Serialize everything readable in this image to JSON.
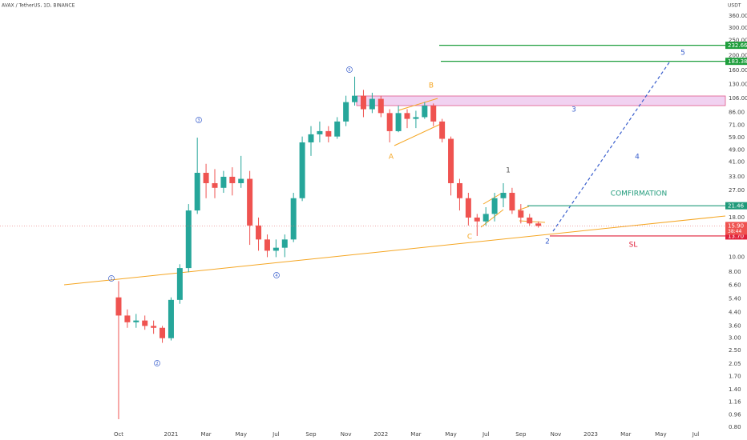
{
  "chart_data": {
    "type": "candlestick",
    "title": "AVAX / TetherUS, 1D, BINANCE",
    "currency": "USDT",
    "log_scale": true,
    "grid": false,
    "up_color": "#26a69a",
    "down_color": "#ef5350",
    "categories": [
      "Oct",
      null,
      null,
      null,
      null,
      null,
      "2021",
      null,
      null,
      null,
      "Mar",
      null,
      null,
      null,
      "May",
      null,
      null,
      null,
      "Jul",
      null,
      null,
      null,
      "Sep",
      null,
      null,
      null,
      "Nov",
      null,
      null,
      null,
      "2022",
      null,
      null,
      null,
      "Mar",
      null,
      null,
      null,
      "May",
      null,
      null,
      null,
      "Jul",
      null,
      null,
      null,
      "Sep",
      null,
      null,
      null,
      "Nov",
      null,
      null,
      null,
      "2023",
      null,
      null,
      null,
      "Mar",
      null,
      null,
      null,
      "May",
      null,
      null,
      null,
      "Jul",
      null
    ],
    "open": [
      5.5,
      4.2,
      3.8,
      3.9,
      3.6,
      3.5,
      3.0,
      5.3,
      8.5,
      20,
      35,
      30,
      28,
      33,
      30,
      32,
      16,
      13,
      11,
      11.5,
      13,
      24,
      55,
      62,
      65,
      60,
      75,
      100,
      110,
      90,
      105,
      85,
      65,
      85,
      78,
      80,
      95,
      75,
      58,
      30,
      24,
      18,
      17,
      19,
      24,
      26,
      20,
      18,
      16.5,
      null,
      null,
      null,
      null,
      null,
      null,
      null,
      null,
      null,
      null,
      null,
      null,
      null,
      null,
      null,
      null,
      null,
      null,
      null
    ],
    "high": [
      7,
      4.6,
      4.3,
      4.2,
      3.9,
      3.6,
      5.5,
      9,
      22,
      59,
      40,
      37,
      36,
      38,
      45,
      36,
      18,
      14,
      13,
      14,
      26,
      60,
      70,
      75,
      70,
      80,
      110,
      146,
      120,
      115,
      110,
      90,
      95,
      90,
      88,
      100,
      98,
      78,
      60,
      32,
      26,
      19,
      21,
      26,
      30,
      28,
      22,
      19,
      17,
      null,
      null,
      null,
      null,
      null,
      null,
      null,
      null,
      null,
      null,
      null,
      null,
      null,
      null,
      null,
      null,
      null,
      null,
      null
    ],
    "low": [
      0.9,
      3.5,
      3.5,
      3.4,
      3.2,
      2.8,
      2.9,
      5,
      8,
      19,
      24,
      24,
      26,
      25,
      28,
      12,
      11,
      10,
      10,
      10,
      12.5,
      23,
      45,
      55,
      55,
      58,
      70,
      95,
      80,
      85,
      80,
      55,
      64,
      68,
      68,
      78,
      70,
      55,
      25,
      20,
      16,
      13.7,
      16,
      17,
      21,
      19,
      16.5,
      16,
      15.5,
      null,
      null,
      null,
      null,
      null,
      null,
      null,
      null,
      null,
      null,
      null,
      null,
      null,
      null,
      null,
      null,
      null,
      null,
      null
    ],
    "close": [
      4.2,
      3.8,
      3.9,
      3.6,
      3.5,
      3.0,
      5.3,
      8.5,
      20,
      35,
      30,
      28,
      33,
      30,
      32,
      16,
      13,
      11,
      11.5,
      13,
      24,
      55,
      62,
      65,
      60,
      75,
      100,
      110,
      90,
      105,
      85,
      65,
      85,
      78,
      80,
      95,
      75,
      58,
      30,
      24,
      18,
      17,
      19,
      24,
      26,
      20,
      18,
      16.5,
      15.9,
      null,
      null,
      null,
      null,
      null,
      null,
      null,
      null,
      null,
      null,
      null,
      null,
      null,
      null,
      null,
      null,
      null,
      null,
      null
    ],
    "ylim": [
      0.79,
      456
    ],
    "yticks": [
      {
        "value": 360,
        "label": "360.00"
      },
      {
        "value": 300,
        "label": "300.00"
      },
      {
        "value": 250,
        "label": "250.00"
      },
      {
        "value": 200,
        "label": "200.00"
      },
      {
        "value": 160,
        "label": "160.00"
      },
      {
        "value": 130,
        "label": "130.00"
      },
      {
        "value": 106,
        "label": "106.00"
      },
      {
        "value": 86,
        "label": "86.00"
      },
      {
        "value": 71,
        "label": "71.00"
      },
      {
        "value": 59,
        "label": "59.00"
      },
      {
        "value": 49,
        "label": "49.00"
      },
      {
        "value": 41,
        "label": "41.00"
      },
      {
        "value": 33,
        "label": "33.00"
      },
      {
        "value": 27,
        "label": "27.00"
      },
      {
        "value": 18,
        "label": "18.00"
      },
      {
        "value": 10,
        "label": "10.00"
      },
      {
        "value": 8,
        "label": "8.00"
      },
      {
        "value": 6.6,
        "label": "6.60"
      },
      {
        "value": 5.4,
        "label": "5.40"
      },
      {
        "value": 4.4,
        "label": "4.40"
      },
      {
        "value": 3.6,
        "label": "3.60"
      },
      {
        "value": 3,
        "label": "3.00"
      },
      {
        "value": 2.5,
        "label": "2.50"
      },
      {
        "value": 2.05,
        "label": "2.05"
      },
      {
        "value": 1.7,
        "label": "1.70"
      },
      {
        "value": 1.4,
        "label": "1.40"
      },
      {
        "value": 1.16,
        "label": "1.16"
      },
      {
        "value": 0.96,
        "label": "0.96"
      },
      {
        "value": 0.8,
        "label": "0.80"
      }
    ],
    "levels": [
      {
        "value": 232.66,
        "color": "#1e9e3c"
      },
      {
        "value": 183.38,
        "color": "#1e9e3c"
      },
      {
        "value": 21.46,
        "color": "#1f9a7a"
      },
      {
        "value": 13.7,
        "label": "13.70",
        "color": "#e0203a"
      }
    ],
    "last_price": {
      "value": 15.9,
      "label": "15.90"
    },
    "countdown": "38:44",
    "wave_labels_circled": [
      "1",
      "2",
      "3",
      "4",
      "5"
    ],
    "correction_labels": [
      "A",
      "B",
      "C"
    ],
    "projection_labels": [
      "1",
      "2",
      "3",
      "4",
      "5"
    ],
    "confirmation_label": "COMFIRMATION",
    "stop_label": "SL"
  }
}
